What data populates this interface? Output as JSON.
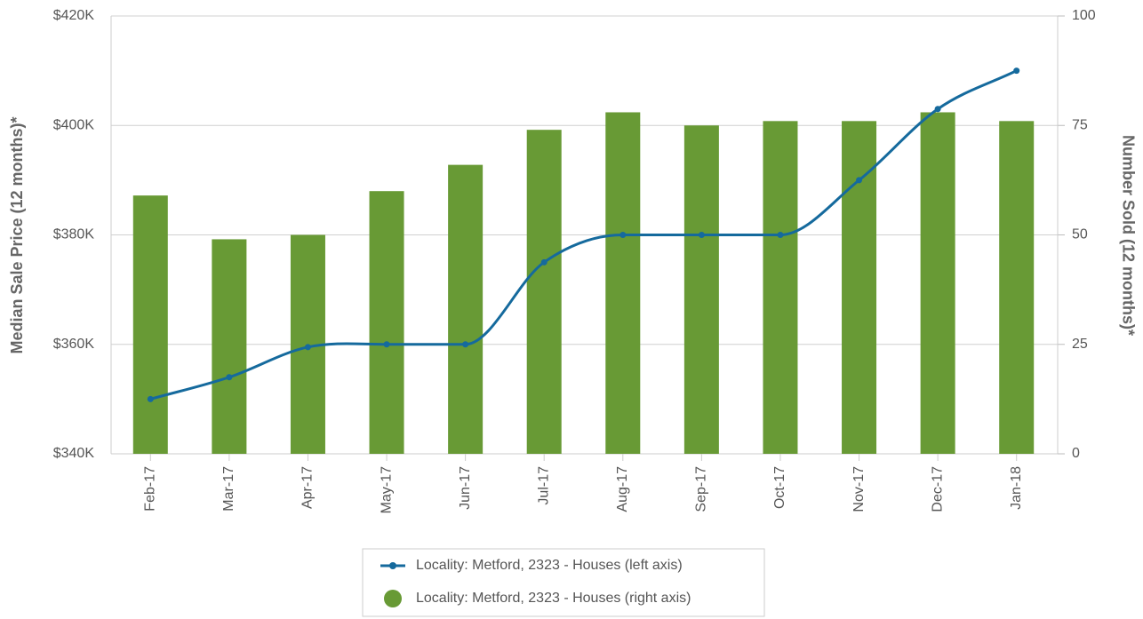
{
  "chart_data": {
    "type": "bar_line",
    "categories": [
      "Feb-17",
      "Mar-17",
      "Apr-17",
      "May-17",
      "Jun-17",
      "Jul-17",
      "Aug-17",
      "Sep-17",
      "Oct-17",
      "Nov-17",
      "Dec-17",
      "Jan-18"
    ],
    "series": [
      {
        "name": "Locality: Metford, 2323 - Houses (left axis)",
        "type": "line",
        "axis": "y",
        "color": "#156a9d",
        "values": [
          350,
          354,
          359.5,
          360,
          360,
          375,
          380,
          380,
          380,
          390,
          403,
          410
        ]
      },
      {
        "name": "Locality: Metford, 2323 - Houses (right axis)",
        "type": "bar",
        "axis": "y2",
        "color": "#689a35",
        "values": [
          59,
          49,
          50,
          60,
          66,
          74,
          78,
          75,
          76,
          76,
          78,
          76
        ]
      }
    ],
    "ylabel": "Median Sale Price (12 months)*",
    "y2label": "Number Sold (12 months)*",
    "ylim": [
      340,
      420
    ],
    "yticks": [
      {
        "value": 340,
        "label": "$340K"
      },
      {
        "value": 360,
        "label": "$360K"
      },
      {
        "value": 380,
        "label": "$380K"
      },
      {
        "value": 400,
        "label": "$400K"
      },
      {
        "value": 420,
        "label": "$420K"
      }
    ],
    "y2lim": [
      0,
      100
    ],
    "y2ticks": [
      0,
      25,
      50,
      75,
      100
    ],
    "grid": true,
    "legend": "bottom"
  }
}
